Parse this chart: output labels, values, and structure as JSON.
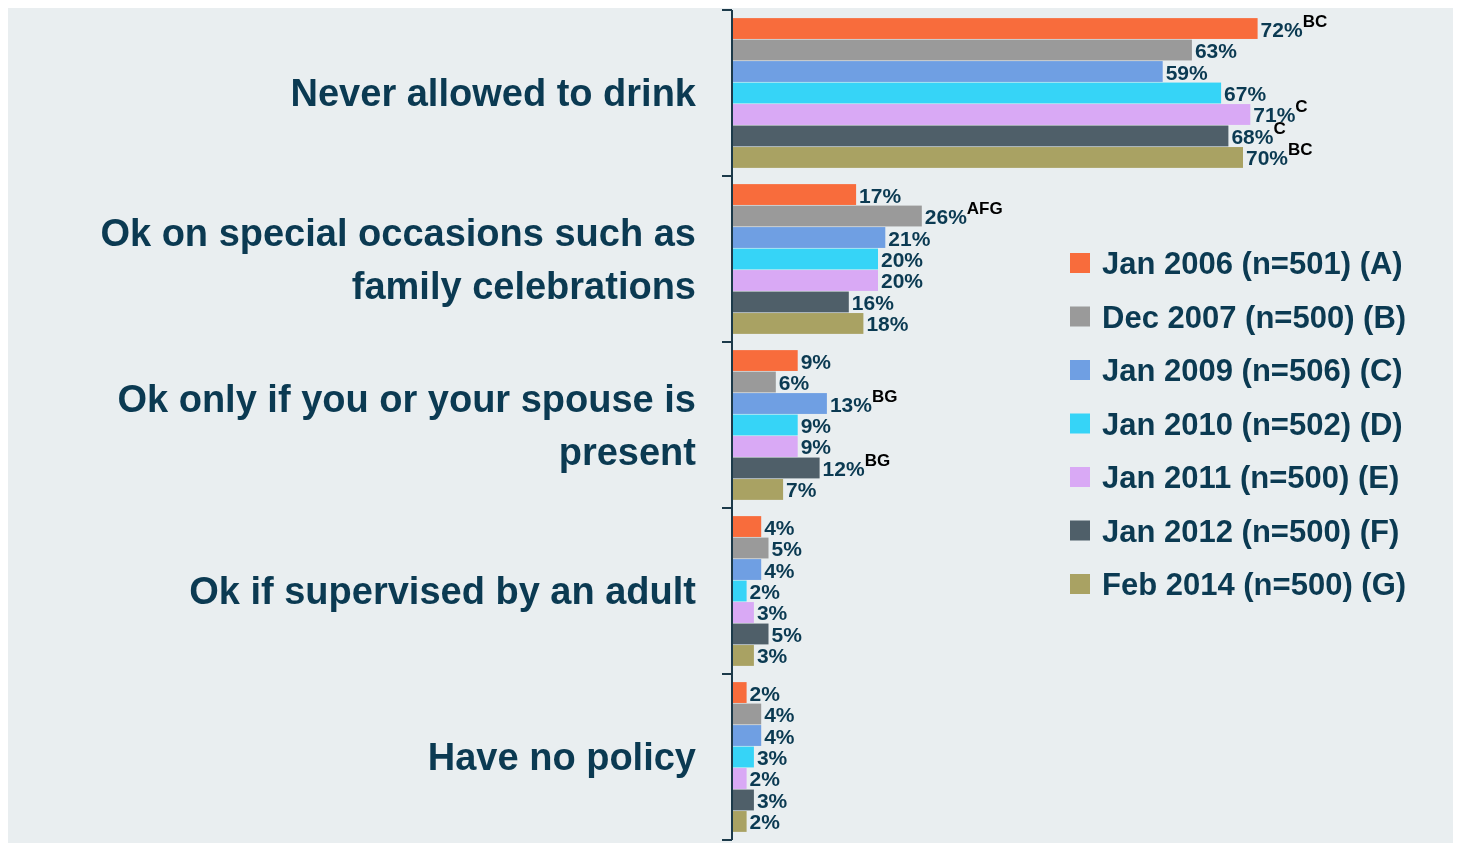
{
  "chart_data": {
    "type": "bar",
    "orientation": "horizontal",
    "categories": [
      "Never allowed to drink",
      "Ok on special occasions such as family celebrations",
      "Ok only if you or your spouse is present",
      "Ok if supervised by an adult",
      "Have no policy"
    ],
    "legend": "right",
    "series": [
      {
        "name": "Jan 2006 (n=501) (A)",
        "color": "#f86c3c",
        "values": [
          72,
          17,
          9,
          4,
          2
        ],
        "value_labels": [
          "72%$^{BC}$",
          "17%",
          "9%",
          "4%",
          "2%"
        ]
      },
      {
        "name": "Dec 2007 (n=500) (B)",
        "color": "#9a9a9a",
        "values": [
          63,
          26,
          6,
          5,
          4
        ],
        "value_labels": [
          "63%",
          "26%$^{AFG}$",
          "6%",
          "5%",
          "4%"
        ]
      },
      {
        "name": "Jan 2009 (n=506) (C)",
        "color": "#6f9fe3",
        "values": [
          59,
          21,
          13,
          4,
          4
        ],
        "value_labels": [
          "59%",
          "21%",
          "13%$^{BG}$",
          "4%",
          "4%"
        ]
      },
      {
        "name": "Jan 2010 (n=502) (D)",
        "color": "#36d4f7",
        "values": [
          67,
          20,
          9,
          2,
          3
        ],
        "value_labels": [
          "67%",
          "20%",
          "9%",
          "2%",
          "3%"
        ]
      },
      {
        "name": "Jan 2011 (n=500) (E)",
        "color": "#d9a9f5",
        "values": [
          71,
          20,
          9,
          3,
          2
        ],
        "value_labels": [
          "71%$^{C}$",
          "20%",
          "9%",
          "3%",
          "2%"
        ]
      },
      {
        "name": "Jan 2012 (n=500) (F)",
        "color": "#4f5f69",
        "values": [
          68,
          16,
          12,
          5,
          3
        ],
        "value_labels": [
          "68%$^{C}$",
          "16%",
          "12%$^{BG}$",
          "5%",
          "3%"
        ]
      },
      {
        "name": "Feb 2014 (n=500) (G)",
        "color": "#a9a263",
        "values": [
          70,
          18,
          7,
          3,
          2
        ],
        "value_labels": [
          "70%$^{BC}$",
          "18%",
          "7%",
          "3%",
          "2%"
        ]
      }
    ]
  }
}
